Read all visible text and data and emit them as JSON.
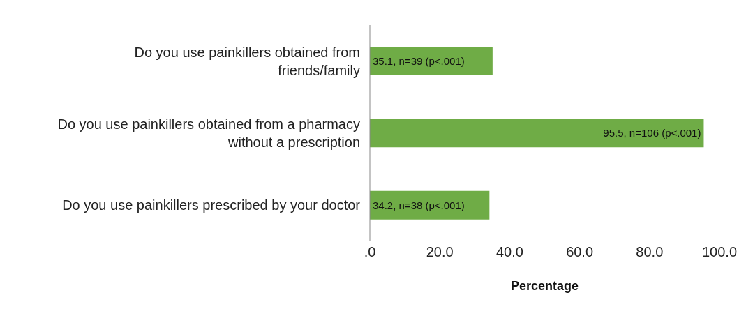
{
  "chart_data": {
    "type": "bar",
    "orientation": "horizontal",
    "xlabel": "Percentage",
    "categories": [
      "Do you use painkillers obtained from friends/family",
      "Do you use painkillers obtained from a pharmacy without a prescription",
      "Do you use painkillers prescribed by your doctor"
    ],
    "values": [
      35.1,
      95.5,
      34.2
    ],
    "color": "#6fac46",
    "value_labels": [
      "35.1, n=39 (p<.001)",
      "95.5, n=106 (p<.001)",
      "34.2, n=38 (p<.001)"
    ],
    "xlim": [
      0,
      100
    ],
    "xticks": [
      {
        "value": 0,
        "label": ".0"
      },
      {
        "value": 20,
        "label": "20.0"
      },
      {
        "value": 40,
        "label": "40.0"
      },
      {
        "value": 60,
        "label": "60.0"
      },
      {
        "value": 80,
        "label": "80.0"
      },
      {
        "value": 100,
        "label": "100.0"
      }
    ],
    "grid": false,
    "legend": false
  }
}
